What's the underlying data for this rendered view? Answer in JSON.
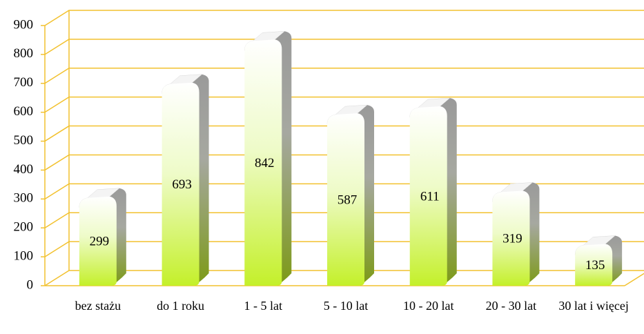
{
  "chart_data": {
    "type": "bar",
    "categories": [
      "bez stażu",
      "do 1 roku",
      "1 - 5 lat",
      "5 - 10 lat",
      "10 - 20 lat",
      "20 - 30 lat",
      "30 lat i więcej"
    ],
    "values": [
      299,
      693,
      842,
      587,
      611,
      319,
      135
    ],
    "color": "#b8e31e",
    "grid_color": "#f2c12e",
    "ylim": [
      0,
      900
    ],
    "yticks": [
      0,
      100,
      200,
      300,
      400,
      500,
      600,
      700,
      800,
      900
    ],
    "grid": true
  }
}
